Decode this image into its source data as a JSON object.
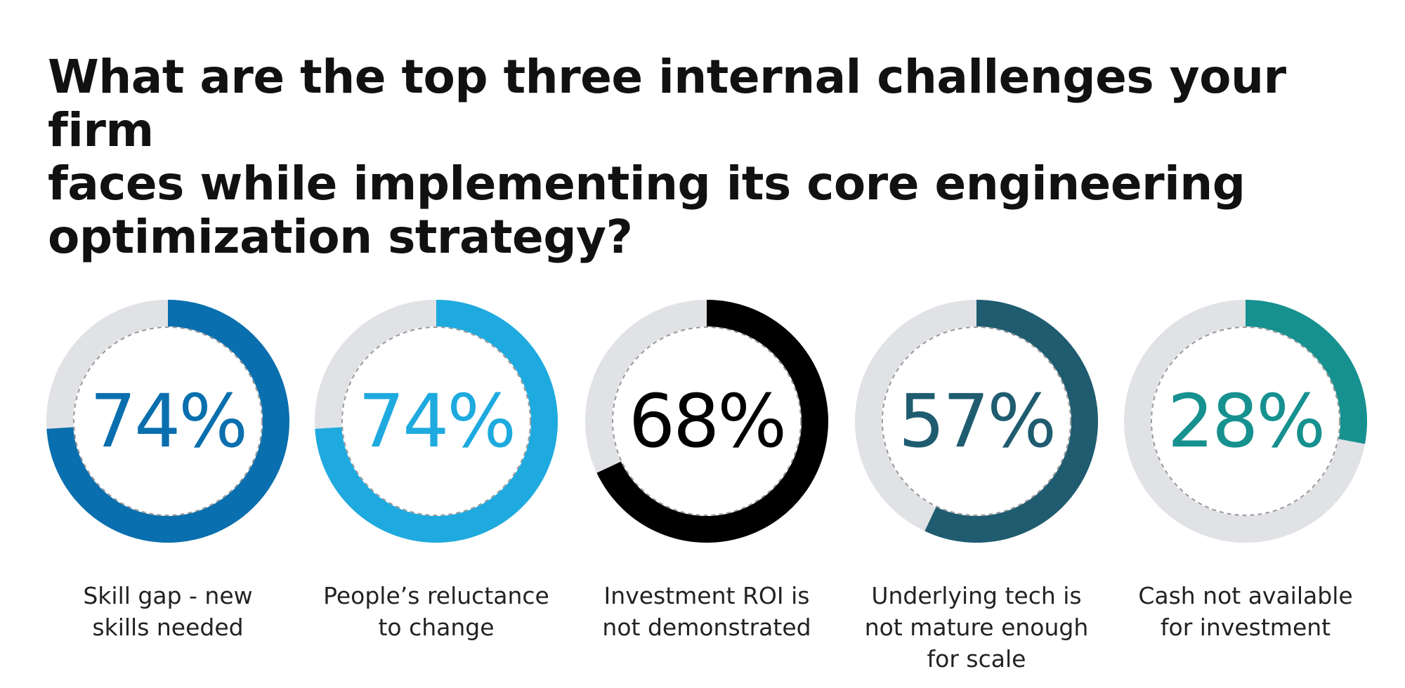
{
  "title_lines": [
    "What are the top three internal challenges your firm",
    "faces while implementing its core engineering",
    "optimization strategy?"
  ],
  "chart_data": {
    "type": "donut",
    "title": "What are the top three internal challenges your firm faces while implementing its core engineering optimization strategy?",
    "categories": [
      "Skill gap - new skills needed",
      "People’s reluctance to change",
      "Investment ROI is not demonstrated",
      "Underlying tech is not mature enough for scale",
      "Cash not available for investment"
    ],
    "values": [
      74,
      74,
      68,
      57,
      28
    ],
    "unit": "%",
    "track_color": "#e1e2e5",
    "items": [
      {
        "value": 74,
        "value_label": "74%",
        "label_lines": [
          "Skill gap - new",
          "skills needed"
        ],
        "color": "#0a6fae"
      },
      {
        "value": 74,
        "value_label": "74%",
        "label_lines": [
          "People’s reluctance",
          "to change"
        ],
        "color": "#1eaadf"
      },
      {
        "value": 68,
        "value_label": "68%",
        "label_lines": [
          "Investment ROI is",
          "not demonstrated"
        ],
        "color": "#000000"
      },
      {
        "value": 57,
        "value_label": "57%",
        "label_lines": [
          "Underlying tech is",
          "not mature enough",
          "for scale"
        ],
        "color": "#1f5c70"
      },
      {
        "value": 28,
        "value_label": "28%",
        "label_lines": [
          "Cash not available",
          "for investment"
        ],
        "color": "#16918f"
      }
    ]
  }
}
